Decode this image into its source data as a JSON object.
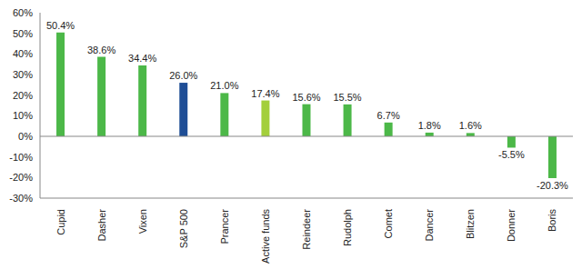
{
  "chart_data": {
    "type": "bar",
    "categories": [
      "Cupid",
      "Dasher",
      "Vixen",
      "S&P 500",
      "Prancer",
      "Active funds",
      "Reindeer",
      "Rudolph",
      "Comet",
      "Dancer",
      "Blitzen",
      "Donner",
      "Boris"
    ],
    "values": [
      50.4,
      38.6,
      34.4,
      26.0,
      21.0,
      17.4,
      15.6,
      15.5,
      6.7,
      1.8,
      1.6,
      -5.5,
      -20.3
    ],
    "value_labels": [
      "50.4%",
      "38.6%",
      "34.4%",
      "26.0%",
      "21.0%",
      "17.4%",
      "15.6%",
      "15.5%",
      "6.7%",
      "1.8%",
      "1.6%",
      "-5.5%",
      "-20.3%"
    ],
    "colors": [
      "#4cb848",
      "#4cb848",
      "#4cb848",
      "#1f4e96",
      "#4cb848",
      "#a3cf3c",
      "#4cb848",
      "#4cb848",
      "#4cb848",
      "#4cb848",
      "#4cb848",
      "#4cb848",
      "#4cb848"
    ],
    "ylim": [
      -30,
      60
    ],
    "yticks": [
      {
        "value": -30,
        "label": "-30%"
      },
      {
        "value": -20,
        "label": "-20%"
      },
      {
        "value": -10,
        "label": "-10%"
      },
      {
        "value": 0,
        "label": "0%"
      },
      {
        "value": 10,
        "label": "10%"
      },
      {
        "value": 20,
        "label": "20%"
      },
      {
        "value": 30,
        "label": "30%"
      },
      {
        "value": 40,
        "label": "40%"
      },
      {
        "value": 50,
        "label": "50%"
      },
      {
        "value": 60,
        "label": "60%"
      }
    ],
    "data_labels": true,
    "grid": false
  }
}
